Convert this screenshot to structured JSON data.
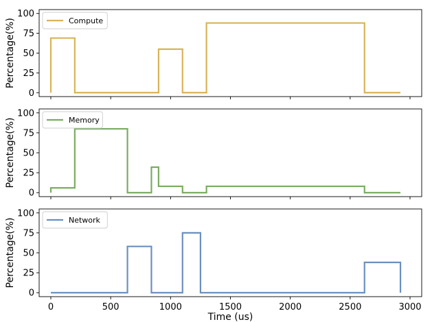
{
  "chart_data": [
    {
      "type": "line",
      "step": true,
      "ylabel": "Percentage(%)",
      "ylim": [
        0,
        100
      ],
      "yticks": [
        0,
        25,
        50,
        75,
        100
      ],
      "xlim": [
        0,
        3000
      ],
      "xticks": [
        0,
        500,
        1000,
        1500,
        2000,
        2500,
        3000
      ],
      "legend_position": "top-left",
      "series": [
        {
          "name": "Compute",
          "color": "#d8b358",
          "x": [
            0,
            0,
            200,
            200,
            900,
            900,
            1100,
            1100,
            1300,
            1300,
            2620,
            2620,
            2920
          ],
          "y": [
            0,
            69,
            69,
            0,
            0,
            55,
            55,
            0,
            0,
            88,
            88,
            0,
            0
          ]
        }
      ]
    },
    {
      "type": "line",
      "step": true,
      "ylabel": "Percentage(%)",
      "ylim": [
        0,
        100
      ],
      "yticks": [
        0,
        25,
        50,
        75,
        100
      ],
      "xlim": [
        0,
        3000
      ],
      "xticks": [
        0,
        500,
        1000,
        1500,
        2000,
        2500,
        3000
      ],
      "legend_position": "top-left",
      "series": [
        {
          "name": "Memory",
          "color": "#7aab61",
          "x": [
            0,
            0,
            200,
            200,
            640,
            640,
            840,
            840,
            900,
            900,
            1100,
            1100,
            1300,
            1300,
            2620,
            2620,
            2920
          ],
          "y": [
            0,
            6,
            6,
            80,
            80,
            0,
            0,
            32,
            32,
            8,
            8,
            0,
            0,
            8,
            8,
            0,
            0
          ]
        }
      ]
    },
    {
      "type": "line",
      "step": true,
      "ylabel": "Percentage(%)",
      "xlabel": "Time (us)",
      "ylim": [
        0,
        100
      ],
      "yticks": [
        0,
        25,
        50,
        75,
        100
      ],
      "xlim": [
        0,
        3000
      ],
      "xticks": [
        0,
        500,
        1000,
        1500,
        2000,
        2500,
        3000
      ],
      "legend_position": "top-left",
      "series": [
        {
          "name": "Network",
          "color": "#6a8fbf",
          "x": [
            0,
            640,
            640,
            840,
            840,
            1100,
            1100,
            1250,
            1250,
            2620,
            2620,
            2920,
            2920
          ],
          "y": [
            0,
            0,
            58,
            58,
            0,
            0,
            75,
            75,
            0,
            0,
            38,
            38,
            0
          ]
        }
      ]
    }
  ]
}
